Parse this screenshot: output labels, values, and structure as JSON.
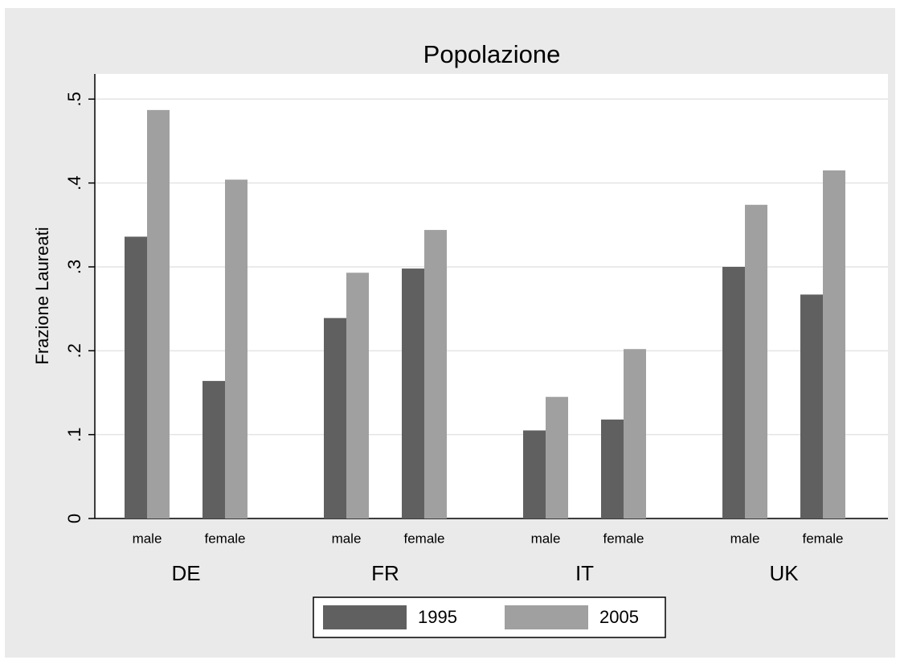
{
  "chart_data": {
    "type": "bar",
    "title": "Popolazione",
    "y_label": "Frazione Laureati",
    "groups": [
      "DE",
      "FR",
      "IT",
      "UK"
    ],
    "categories": [
      "male",
      "female",
      "male",
      "female",
      "male",
      "female",
      "male",
      "female"
    ],
    "series": [
      {
        "name": "1995",
        "color": "#606060",
        "values": [
          0.336,
          0.164,
          0.239,
          0.298,
          0.105,
          0.118,
          0.3,
          0.267
        ]
      },
      {
        "name": "2005",
        "color": "#a0a0a0",
        "values": [
          0.487,
          0.404,
          0.293,
          0.344,
          0.145,
          0.202,
          0.374,
          0.415
        ]
      }
    ],
    "ylim": [
      0,
      0.53
    ],
    "yticks": [
      0,
      {
        "value": 0.1,
        "label": ".1"
      },
      {
        "value": 0.2,
        "label": ".2"
      },
      {
        "value": 0.3,
        "label": ".3"
      },
      {
        "value": 0.4,
        "label": ".4"
      },
      {
        "value": 0.5,
        "label": ".5"
      }
    ],
    "grid": true,
    "legend": "bottom"
  }
}
